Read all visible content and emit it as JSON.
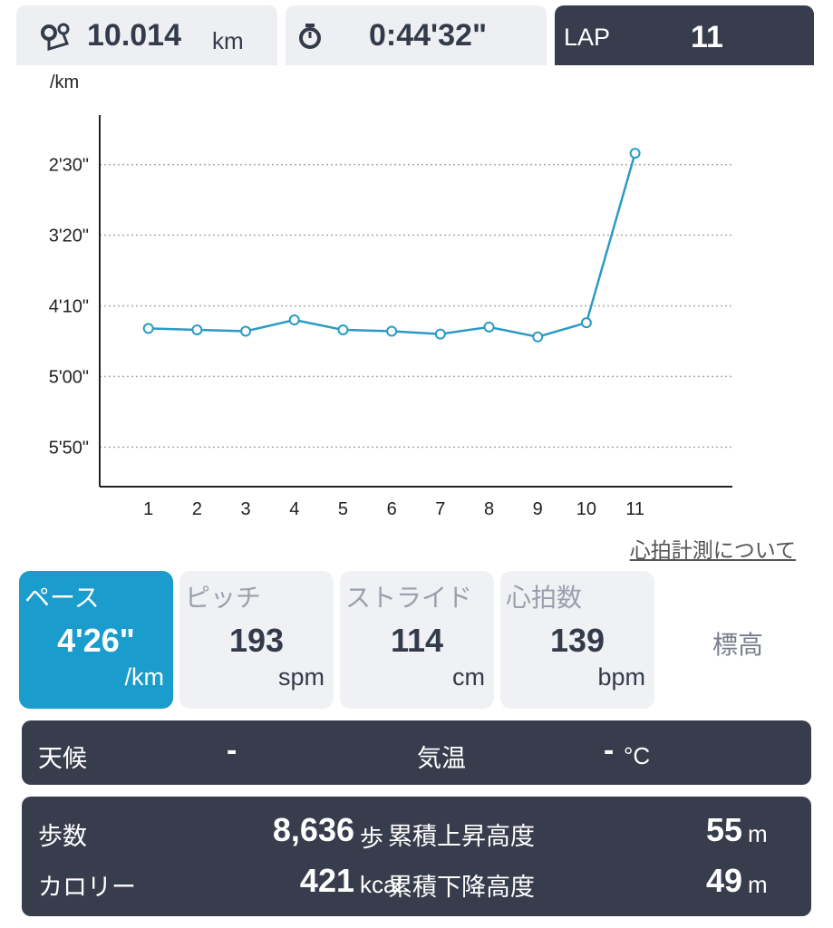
{
  "header": {
    "distance": "10.014",
    "distance_unit": "km",
    "time": "0:44'32\"",
    "lap_label": "LAP",
    "lap": "11"
  },
  "chart_data": {
    "type": "line",
    "y_unit": "/km",
    "x": [
      1,
      2,
      3,
      4,
      5,
      6,
      7,
      8,
      9,
      10,
      11
    ],
    "xlim": [
      0,
      13
    ],
    "xticks": [
      1,
      2,
      3,
      4,
      5,
      6,
      7,
      8,
      9,
      10,
      11
    ],
    "series": [
      {
        "color": "#2a9bc4",
        "values": [
          266,
          267,
          268,
          260,
          267,
          268,
          270,
          265,
          272,
          262,
          142
        ]
      }
    ],
    "ylim": [
      378,
      115
    ],
    "yticks": [
      {
        "value": 150,
        "label": "2'30\""
      },
      {
        "value": 200,
        "label": "3'20\""
      },
      {
        "value": 250,
        "label": "4'10\""
      },
      {
        "value": 300,
        "label": "5'00\""
      },
      {
        "value": 350,
        "label": "5'50\""
      }
    ],
    "grid": true
  },
  "heart_link": "心拍計測について",
  "tabs": [
    {
      "label": "ペース",
      "value": "4'26\"",
      "unit": "/km"
    },
    {
      "label": "ピッチ",
      "value": "193",
      "unit": "spm"
    },
    {
      "label": "ストライド",
      "value": "114",
      "unit": "cm"
    },
    {
      "label": "心拍数",
      "value": "139",
      "unit": "bpm"
    },
    {
      "label": "標高"
    }
  ],
  "weather": {
    "label": "天候",
    "value": "-",
    "temp_label": "気温",
    "temp_value": "-",
    "temp_unit": "°C"
  },
  "stats": [
    {
      "label": "歩数",
      "value": "8,636",
      "unit": "歩"
    },
    {
      "label": "累積上昇高度",
      "value": "55",
      "unit": "m"
    },
    {
      "label": "カロリー",
      "value": "421",
      "unit": "kcal"
    },
    {
      "label": "累積下降高度",
      "value": "49",
      "unit": "m"
    }
  ]
}
